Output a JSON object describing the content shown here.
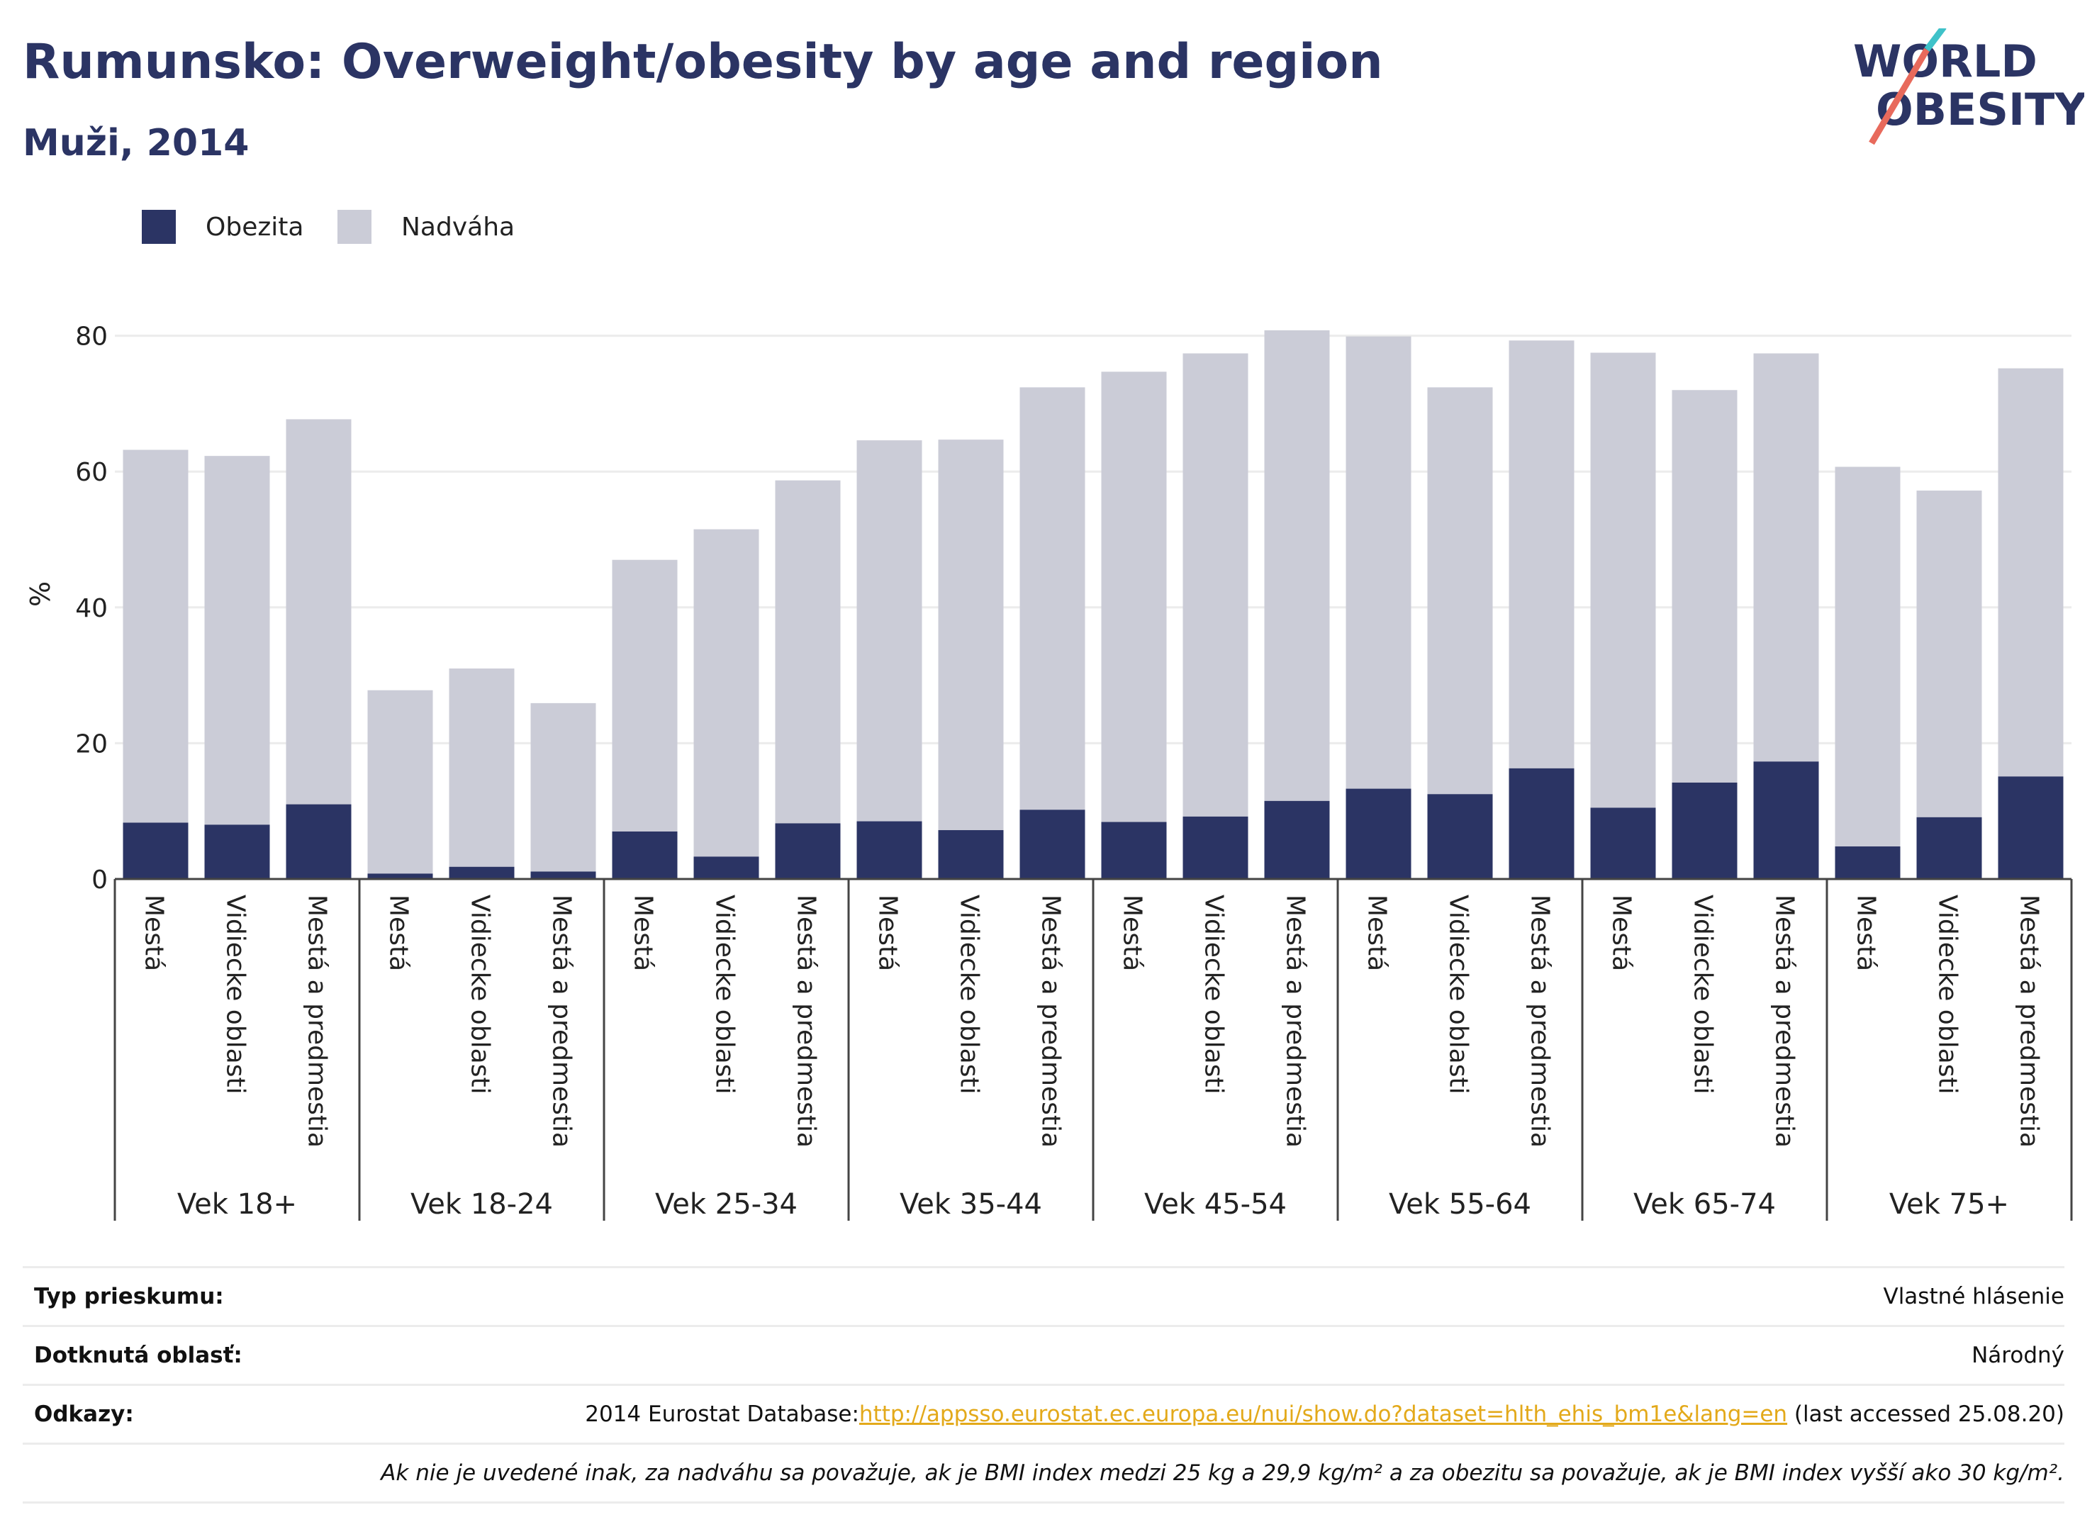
{
  "title": "Rumunsko: Overweight/obesity by age and region",
  "subtitle": "Muži, 2014",
  "logo": {
    "line1": "WORLD",
    "line2": "OBESITY"
  },
  "colors": {
    "obesity": "#2b3464",
    "overweight": "#cbccd7",
    "title": "#2b3464",
    "link": "#e3a91a",
    "logo_slash_a": "#e86a5c",
    "logo_slash_b": "#3fc2c9"
  },
  "legend": [
    {
      "label": "Obezita",
      "color": "#2b3464"
    },
    {
      "label": "Nadváha",
      "color": "#cbccd7"
    }
  ],
  "chart_data": {
    "type": "bar",
    "stacked": true,
    "ylabel": "%",
    "ylim": [
      0,
      85
    ],
    "yticks": [
      0,
      20,
      40,
      60,
      80
    ],
    "grid": true,
    "legend_position": "top-left",
    "groups": [
      "Vek 18+",
      "Vek 18-24",
      "Vek 25-34",
      "Vek 35-44",
      "Vek 45-54",
      "Vek 55-64",
      "Vek 65-74",
      "Vek 75+"
    ],
    "subcategories": [
      "Mestá",
      "Vidiecke oblasti",
      "Mestá a predmestia"
    ],
    "series": [
      {
        "name": "Obezita",
        "values": [
          8.3,
          8.0,
          11.0,
          0.8,
          1.8,
          1.1,
          7.0,
          3.3,
          8.2,
          8.5,
          7.2,
          10.2,
          8.4,
          9.2,
          11.5,
          13.3,
          12.5,
          16.3,
          10.5,
          14.2,
          17.3,
          4.8,
          9.1,
          15.1
        ]
      },
      {
        "name": "Nadváha",
        "values": [
          54.9,
          54.3,
          56.7,
          27.0,
          29.2,
          24.8,
          40.0,
          48.2,
          50.5,
          56.1,
          57.5,
          62.2,
          66.3,
          68.2,
          69.3,
          66.6,
          59.9,
          63.0,
          67.0,
          57.8,
          60.1,
          55.9,
          48.1,
          60.1
        ]
      }
    ]
  },
  "info": {
    "survey_type_label": "Typ prieskumu:",
    "survey_type_value": "Vlastné hlásenie",
    "area_label": "Dotknutá oblasť:",
    "area_value": "Národný",
    "refs_label": "Odkazy:",
    "refs_prefix": "2014 Eurostat Database:",
    "refs_link": "http://appsso.eurostat.ec.europa.eu/nui/show.do?dataset=hlth_ehis_bm1e&lang=en",
    "refs_suffix": " (last accessed 25.08.20)",
    "note": "Ak nie je uvedené inak, za nadváhu sa považuje, ak je BMI index medzi 25 kg a 29,9 kg/m² a za obezitu sa považuje, ak je BMI index vyšší ako 30 kg/m²."
  }
}
